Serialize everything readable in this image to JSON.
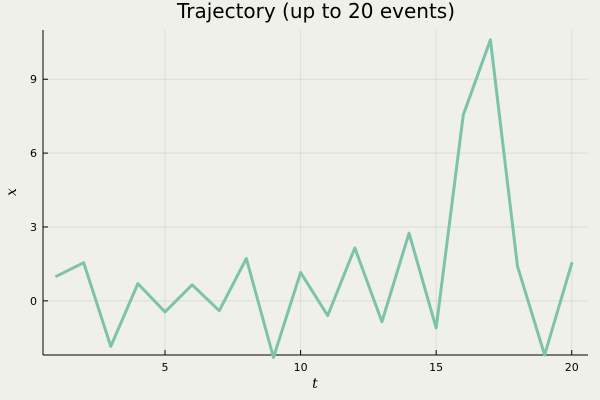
{
  "chart_data": {
    "type": "line",
    "title": "Trajectory (up to 20 events)",
    "xlabel": "t",
    "ylabel": "x",
    "xlim": [
      0.5,
      20.6
    ],
    "ylim": [
      -2.2,
      11.0
    ],
    "xticks": [
      5,
      10,
      15,
      20
    ],
    "yticks": [
      0,
      3,
      6,
      9
    ],
    "grid": true,
    "legend": "none",
    "series": [
      {
        "color": "#7cc3a9",
        "x": [
          1,
          2,
          3,
          4,
          5,
          6,
          7,
          8,
          9,
          10,
          11,
          12,
          13,
          14,
          15,
          16,
          17,
          18,
          19,
          20
        ],
        "y": [
          1.0,
          1.55,
          -1.85,
          0.7,
          -0.45,
          0.65,
          -0.4,
          1.72,
          -2.3,
          1.15,
          -0.6,
          2.15,
          -0.85,
          2.75,
          -1.1,
          7.55,
          10.6,
          1.4,
          -2.2,
          1.52
        ]
      }
    ]
  }
}
